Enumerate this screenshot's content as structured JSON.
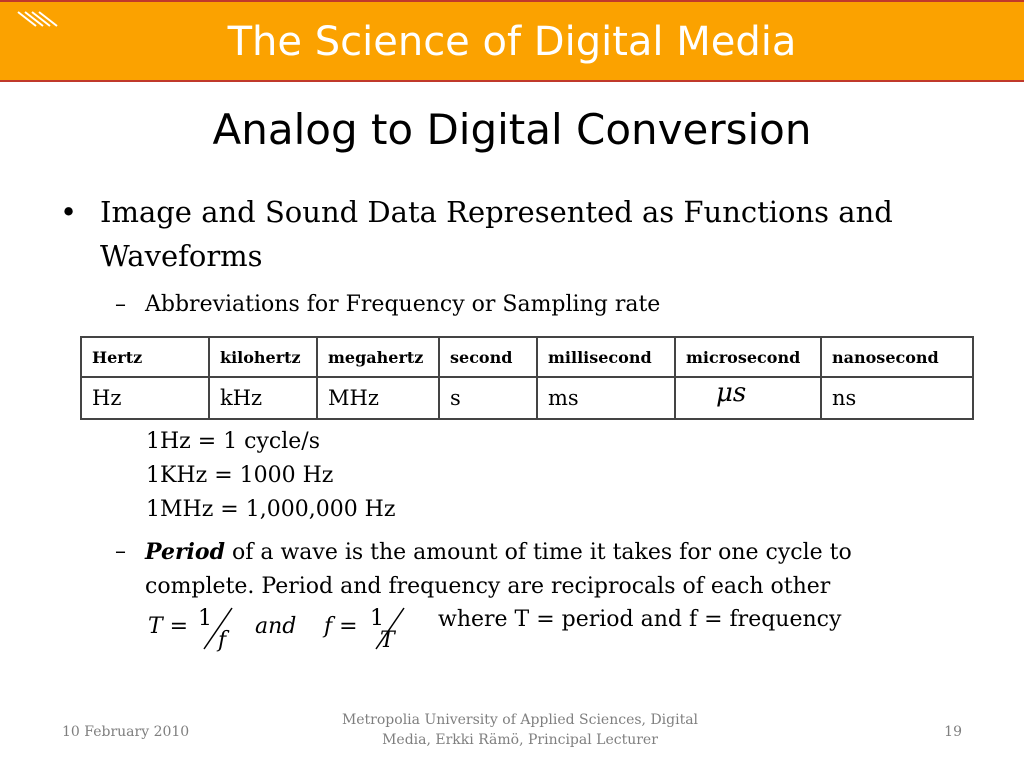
{
  "header": {
    "title": "The Science of Digital Media"
  },
  "slide": {
    "title": "Analog to Digital Conversion",
    "bullet": "Image and Sound Data Represented as Functions and Waveforms",
    "sub_bullet_1": "Abbreviations for Frequency or Sampling rate",
    "table": {
      "headers": [
        "Hertz",
        "kilohertz",
        "megahertz",
        "second",
        "millisecond",
        "microsecond",
        "nanosecond"
      ],
      "values": [
        "Hz",
        "kHz",
        "MHz",
        "s",
        "ms",
        "μs",
        "ns"
      ]
    },
    "conversions": [
      "1Hz = 1 cycle/s",
      "1KHz = 1000 Hz",
      "1MHz = 1,000,000 Hz"
    ],
    "sub_bullet_2": {
      "term": "Period",
      "rest": " of a wave is the amount of time it takes for one cycle to complete. Period and frequency are reciprocals of each other"
    },
    "formula": {
      "t_lhs": "T =",
      "one_a": "1",
      "f_den": "f",
      "and": "and",
      "f_lhs": "f =",
      "one_b": "1",
      "t_den": "T"
    },
    "where": "where T = period and f = frequency"
  },
  "footer": {
    "date": "10 February 2010",
    "center_line1": "Metropolia University of Applied Sciences,  Digital",
    "center_line2": "Media, Erkki Rämö, Principal Lecturer",
    "page": "19"
  }
}
